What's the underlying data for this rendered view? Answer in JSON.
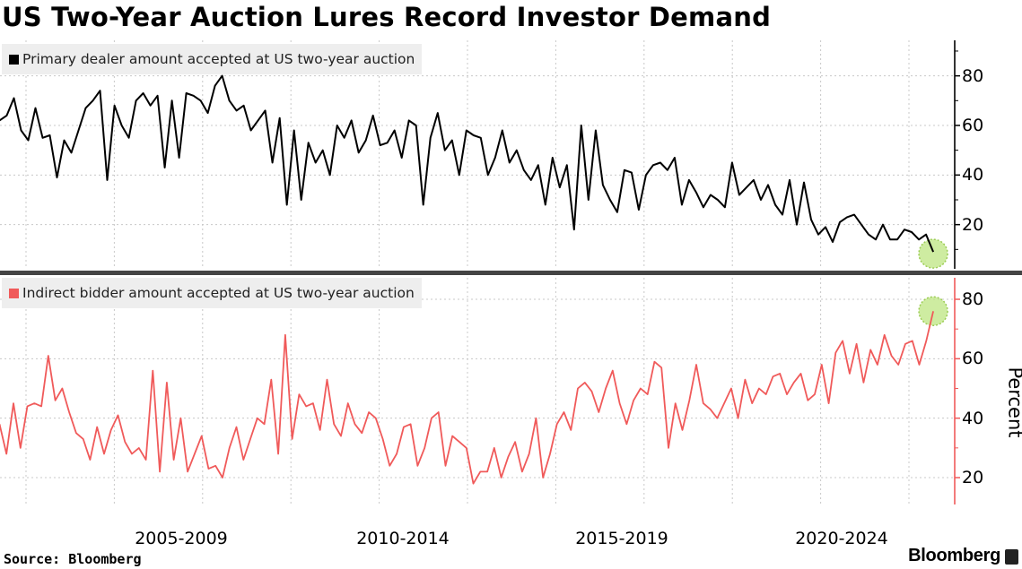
{
  "title": "US Two-Year Auction Lures Record Investor Demand",
  "source": "Source: Bloomberg",
  "brand": "Bloomberg",
  "chart_data": [
    {
      "type": "line",
      "name": "Primary dealer amount accepted at US two-year auction",
      "color": "#000000",
      "x_range": [
        2003.4,
        2024.55
      ],
      "ylim": [
        0,
        94
      ],
      "yticks": [
        "20",
        "40",
        "60",
        "80"
      ],
      "ytick_values": [
        20,
        40,
        60,
        80
      ],
      "grid": true,
      "legend": "top-left",
      "highlight_last": true,
      "values": [
        62,
        64,
        71,
        58,
        54,
        67,
        55,
        56,
        39,
        54,
        49,
        58,
        67,
        70,
        74,
        38,
        68,
        60,
        55,
        70,
        73,
        68,
        72,
        43,
        70,
        47,
        73,
        72,
        70,
        65,
        76,
        80,
        70,
        66,
        68,
        58,
        62,
        66,
        45,
        63,
        28,
        58,
        30,
        53,
        45,
        50,
        40,
        60,
        55,
        62,
        49,
        54,
        64,
        52,
        53,
        58,
        47,
        62,
        60,
        28,
        55,
        65,
        50,
        54,
        40,
        58,
        56,
        55,
        40,
        47,
        58,
        45,
        50,
        42,
        38,
        44,
        28,
        47,
        35,
        44,
        18,
        60,
        30,
        58,
        36,
        30,
        25,
        42,
        41,
        26,
        40,
        44,
        45,
        42,
        47,
        28,
        38,
        33,
        27,
        32,
        30,
        27,
        45,
        32,
        35,
        38,
        30,
        36,
        28,
        24,
        38,
        20,
        37,
        22,
        16,
        19,
        13,
        21,
        23,
        24,
        20,
        16,
        14,
        20,
        14,
        14,
        18,
        17,
        14,
        16,
        9
      ]
    },
    {
      "type": "line",
      "name": "Indirect bidder amount accepted at US two-year auction",
      "color": "#f05a5a",
      "x_range": [
        2003.4,
        2024.55
      ],
      "ylim": [
        11,
        87
      ],
      "yticks": [
        "20",
        "40",
        "60",
        "80"
      ],
      "ytick_values": [
        20,
        40,
        60,
        80
      ],
      "ylabel": "Percent",
      "grid": true,
      "legend": "top-left",
      "highlight_last": true,
      "values": [
        38,
        28,
        45,
        30,
        44,
        45,
        44,
        61,
        46,
        50,
        42,
        35,
        33,
        26,
        37,
        28,
        36,
        41,
        32,
        28,
        30,
        26,
        56,
        22,
        52,
        26,
        40,
        22,
        28,
        34,
        23,
        24,
        20,
        30,
        37,
        26,
        33,
        40,
        38,
        53,
        28,
        68,
        33,
        48,
        44,
        45,
        36,
        53,
        38,
        34,
        45,
        38,
        35,
        42,
        40,
        33,
        24,
        28,
        37,
        38,
        24,
        30,
        40,
        42,
        24,
        34,
        32,
        30,
        18,
        22,
        22,
        30,
        20,
        27,
        32,
        22,
        28,
        40,
        20,
        28,
        38,
        42,
        36,
        50,
        52,
        49,
        42,
        50,
        56,
        45,
        38,
        46,
        50,
        48,
        59,
        57,
        30,
        45,
        36,
        46,
        58,
        45,
        43,
        40,
        45,
        50,
        40,
        53,
        45,
        50,
        48,
        54,
        55,
        48,
        52,
        55,
        46,
        48,
        58,
        45,
        62,
        66,
        55,
        65,
        52,
        63,
        58,
        68,
        61,
        58,
        65,
        66,
        58,
        66,
        76
      ]
    }
  ],
  "x_axis": {
    "labels": [
      "2005-2009",
      "2010-2014",
      "2015-2019",
      "2020-2024"
    ],
    "label_centers": [
      2007.5,
      2012.5,
      2017.5,
      2022.5
    ],
    "gridlines": [
      2004,
      2006,
      2008,
      2010,
      2012,
      2014,
      2016,
      2018,
      2020,
      2022,
      2024
    ]
  }
}
